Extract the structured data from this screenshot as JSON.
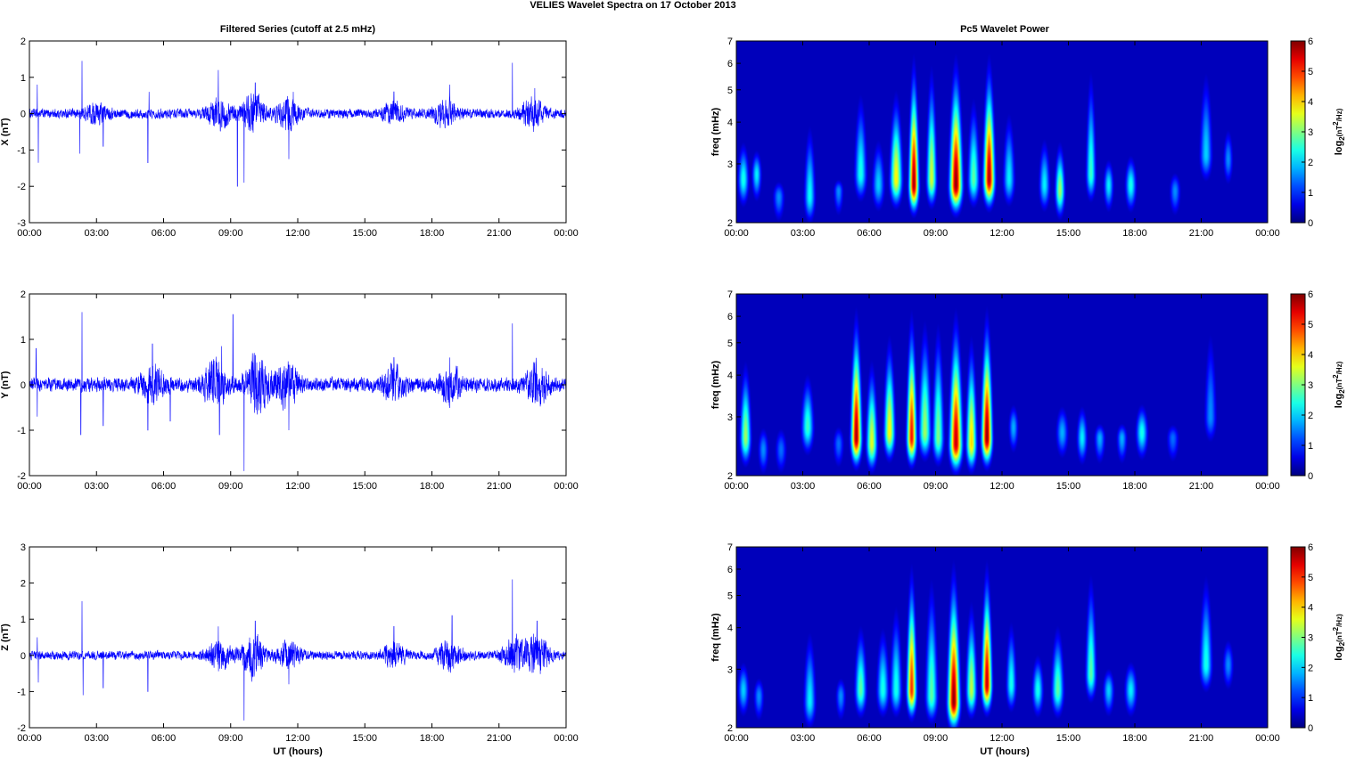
{
  "figure": {
    "title": "VELIES Wavelet Spectra on 17 October   2013",
    "left_column_title": "Filtered Series (cutoff at 2.5 mHz)",
    "right_column_title": "Pc5 Wavelet Power",
    "xlabel": "UT (hours)"
  },
  "chart_data": [
    {
      "type": "line",
      "name": "x-series",
      "ylabel": "X (nT)",
      "x_range_hours": [
        0,
        24
      ],
      "x_ticks": [
        "00:00",
        "03:00",
        "06:00",
        "09:00",
        "12:00",
        "15:00",
        "18:00",
        "21:00",
        "00:00"
      ],
      "ylim": [
        -3,
        2
      ],
      "y_ticks": [
        "-3",
        "-2",
        "-1",
        "0",
        "1",
        "2"
      ],
      "noise_amplitude": 0.12,
      "activity": [
        [
          3.0,
          0.2
        ],
        [
          8.5,
          0.35
        ],
        [
          10.0,
          0.45
        ],
        [
          11.6,
          0.35
        ],
        [
          16.3,
          0.25
        ],
        [
          18.6,
          0.3
        ],
        [
          22.5,
          0.35
        ]
      ],
      "spikes": [
        [
          0.35,
          0.8
        ],
        [
          0.4,
          -1.35
        ],
        [
          2.25,
          -1.1
        ],
        [
          2.35,
          1.45
        ],
        [
          3.3,
          -0.9
        ],
        [
          5.3,
          -1.35
        ],
        [
          5.35,
          0.6
        ],
        [
          8.45,
          1.2
        ],
        [
          9.3,
          -2.0
        ],
        [
          9.6,
          -1.9
        ],
        [
          10.1,
          0.85
        ],
        [
          11.6,
          -1.25
        ],
        [
          11.8,
          0.6
        ],
        [
          16.3,
          0.6
        ],
        [
          18.8,
          0.8
        ],
        [
          21.6,
          1.4
        ],
        [
          22.6,
          0.7
        ]
      ],
      "color": "#0000ff"
    },
    {
      "type": "line",
      "name": "y-series",
      "ylabel": "Y (nT)",
      "x_range_hours": [
        0,
        24
      ],
      "x_ticks": [
        "00:00",
        "03:00",
        "06:00",
        "09:00",
        "12:00",
        "15:00",
        "18:00",
        "21:00",
        "00:00"
      ],
      "ylim": [
        -2,
        2
      ],
      "y_ticks": [
        "-2",
        "-1",
        "0",
        "1",
        "2"
      ],
      "noise_amplitude": 0.14,
      "activity": [
        [
          5.5,
          0.35
        ],
        [
          8.3,
          0.45
        ],
        [
          10.2,
          0.55
        ],
        [
          11.5,
          0.4
        ],
        [
          16.3,
          0.3
        ],
        [
          18.8,
          0.3
        ],
        [
          22.7,
          0.35
        ]
      ],
      "spikes": [
        [
          0.3,
          0.8
        ],
        [
          0.35,
          -0.7
        ],
        [
          2.3,
          -1.1
        ],
        [
          2.35,
          1.6
        ],
        [
          3.3,
          -0.9
        ],
        [
          5.3,
          -1.0
        ],
        [
          5.5,
          0.9
        ],
        [
          6.3,
          -0.8
        ],
        [
          8.5,
          -1.1
        ],
        [
          8.6,
          0.85
        ],
        [
          9.1,
          1.55
        ],
        [
          9.6,
          -1.9
        ],
        [
          10.1,
          0.65
        ],
        [
          11.6,
          -1.0
        ],
        [
          16.3,
          0.6
        ],
        [
          18.8,
          0.6
        ],
        [
          21.6,
          1.35
        ],
        [
          22.6,
          0.5
        ]
      ],
      "color": "#0000ff"
    },
    {
      "type": "line",
      "name": "z-series",
      "ylabel": "Z (nT)",
      "x_range_hours": [
        0,
        24
      ],
      "x_ticks": [
        "00:00",
        "03:00",
        "06:00",
        "09:00",
        "12:00",
        "15:00",
        "18:00",
        "21:00",
        "00:00"
      ],
      "ylim": [
        -2,
        3
      ],
      "y_ticks": [
        "-2",
        "-1",
        "0",
        "1",
        "2",
        "3"
      ],
      "noise_amplitude": 0.11,
      "activity": [
        [
          8.5,
          0.3
        ],
        [
          10.0,
          0.5
        ],
        [
          11.6,
          0.3
        ],
        [
          16.3,
          0.25
        ],
        [
          18.8,
          0.35
        ],
        [
          21.7,
          0.4
        ],
        [
          22.7,
          0.45
        ]
      ],
      "spikes": [
        [
          0.35,
          0.5
        ],
        [
          0.4,
          -0.75
        ],
        [
          2.35,
          1.5
        ],
        [
          2.4,
          -1.1
        ],
        [
          3.3,
          -0.9
        ],
        [
          5.3,
          -1.0
        ],
        [
          8.45,
          0.8
        ],
        [
          9.6,
          -1.8
        ],
        [
          10.1,
          0.95
        ],
        [
          11.6,
          -0.8
        ],
        [
          16.3,
          0.8
        ],
        [
          18.9,
          1.1
        ],
        [
          21.6,
          2.1
        ],
        [
          22.7,
          0.95
        ]
      ],
      "color": "#0000ff"
    },
    {
      "type": "heatmap",
      "name": "x-wavelet",
      "ylabel": "freq (mHz)",
      "y_scale": "log",
      "ylim": [
        2,
        7
      ],
      "y_ticks": [
        "2",
        "3",
        "4",
        "5",
        "6",
        "7"
      ],
      "x_range_hours": [
        0,
        24
      ],
      "x_ticks": [
        "00:00",
        "03:00",
        "06:00",
        "09:00",
        "12:00",
        "15:00",
        "18:00",
        "21:00",
        "00:00"
      ],
      "colorbar": {
        "label": "log2(nT^2/Hz)",
        "range": [
          0,
          6
        ],
        "ticks": [
          "0",
          "1",
          "2",
          "3",
          "4",
          "5",
          "6"
        ]
      },
      "peaks": [
        [
          0.3,
          2.7,
          2.4,
          3.8
        ],
        [
          0.9,
          2.8,
          2.2,
          3.5
        ],
        [
          1.9,
          2.4,
          1.6,
          2.8
        ],
        [
          3.3,
          2.4,
          2.3,
          4.6
        ],
        [
          4.6,
          2.5,
          1.6,
          2.8
        ],
        [
          5.6,
          2.8,
          2.4,
          5.8
        ],
        [
          6.4,
          2.6,
          2.0,
          4.0
        ],
        [
          7.2,
          2.7,
          3.8,
          5.6
        ],
        [
          8.0,
          2.6,
          5.8,
          7.0
        ],
        [
          8.8,
          2.7,
          3.5,
          7.0
        ],
        [
          9.9,
          2.6,
          5.9,
          7.0
        ],
        [
          10.7,
          2.7,
          2.8,
          5.5
        ],
        [
          11.4,
          2.7,
          5.7,
          7.0
        ],
        [
          12.3,
          2.7,
          2.2,
          5.0
        ],
        [
          13.9,
          2.6,
          2.2,
          4.0
        ],
        [
          14.6,
          2.5,
          3.2,
          3.8
        ],
        [
          16.0,
          2.8,
          2.6,
          7.0
        ],
        [
          16.8,
          2.6,
          2.2,
          3.3
        ],
        [
          17.8,
          2.6,
          2.4,
          3.4
        ],
        [
          19.8,
          2.5,
          1.6,
          3.0
        ],
        [
          21.2,
          3.2,
          2.0,
          7.0
        ],
        [
          22.2,
          3.1,
          1.6,
          4.2
        ]
      ],
      "color_map": "jet"
    },
    {
      "type": "heatmap",
      "name": "y-wavelet",
      "ylabel": "freq (mHz)",
      "y_scale": "log",
      "ylim": [
        2,
        7
      ],
      "y_ticks": [
        "2",
        "3",
        "4",
        "5",
        "6",
        "7"
      ],
      "x_range_hours": [
        0,
        24
      ],
      "x_ticks": [
        "00:00",
        "03:00",
        "06:00",
        "09:00",
        "12:00",
        "15:00",
        "18:00",
        "21:00",
        "00:00"
      ],
      "colorbar": {
        "label": "log2(nT^2/Hz)",
        "range": [
          0,
          6
        ],
        "ticks": [
          "0",
          "1",
          "2",
          "3",
          "4",
          "5",
          "6"
        ]
      },
      "peaks": [
        [
          0.4,
          2.6,
          3.2,
          5.0
        ],
        [
          1.2,
          2.4,
          1.6,
          3.0
        ],
        [
          2.0,
          2.4,
          1.4,
          3.0
        ],
        [
          3.2,
          2.8,
          2.6,
          4.5
        ],
        [
          4.6,
          2.5,
          1.4,
          3.0
        ],
        [
          5.4,
          2.6,
          5.8,
          7.0
        ],
        [
          6.1,
          2.5,
          3.6,
          5.0
        ],
        [
          6.9,
          2.7,
          3.8,
          6.0
        ],
        [
          7.9,
          2.6,
          5.2,
          7.0
        ],
        [
          8.5,
          2.7,
          3.2,
          7.0
        ],
        [
          9.1,
          2.6,
          3.0,
          7.0
        ],
        [
          9.9,
          2.5,
          5.6,
          7.0
        ],
        [
          10.6,
          2.5,
          4.0,
          6.0
        ],
        [
          11.3,
          2.6,
          5.9,
          7.0
        ],
        [
          12.5,
          2.8,
          1.8,
          3.5
        ],
        [
          14.7,
          2.7,
          1.8,
          3.5
        ],
        [
          15.6,
          2.6,
          2.2,
          3.5
        ],
        [
          16.4,
          2.6,
          1.8,
          3.0
        ],
        [
          17.4,
          2.6,
          1.8,
          3.0
        ],
        [
          18.3,
          2.7,
          2.4,
          3.5
        ],
        [
          19.7,
          2.6,
          1.4,
          3.0
        ],
        [
          21.4,
          3.0,
          1.6,
          7.0
        ]
      ],
      "color_map": "jet"
    },
    {
      "type": "heatmap",
      "name": "z-wavelet",
      "ylabel": "freq (mHz)",
      "y_scale": "log",
      "ylim": [
        2,
        7
      ],
      "y_ticks": [
        "2",
        "3",
        "4",
        "5",
        "6",
        "7"
      ],
      "x_range_hours": [
        0,
        24
      ],
      "x_ticks": [
        "00:00",
        "03:00",
        "06:00",
        "09:00",
        "12:00",
        "15:00",
        "18:00",
        "21:00",
        "00:00"
      ],
      "colorbar": {
        "label": "log2(nT^2/Hz)",
        "range": [
          0,
          6
        ],
        "ticks": [
          "0",
          "1",
          "2",
          "3",
          "4",
          "5",
          "6"
        ]
      },
      "peaks": [
        [
          0.3,
          2.6,
          2.0,
          3.4
        ],
        [
          1.0,
          2.5,
          1.6,
          3.0
        ],
        [
          3.3,
          2.4,
          2.2,
          4.6
        ],
        [
          4.7,
          2.5,
          1.6,
          3.0
        ],
        [
          5.6,
          2.6,
          2.8,
          4.6
        ],
        [
          6.6,
          2.6,
          2.4,
          4.6
        ],
        [
          7.2,
          2.6,
          2.4,
          5.6
        ],
        [
          7.9,
          2.6,
          5.0,
          7.0
        ],
        [
          8.8,
          2.5,
          2.8,
          7.0
        ],
        [
          9.8,
          2.4,
          5.9,
          7.0
        ],
        [
          10.6,
          2.6,
          3.4,
          5.5
        ],
        [
          11.3,
          2.7,
          5.6,
          7.0
        ],
        [
          12.4,
          2.7,
          2.4,
          4.8
        ],
        [
          13.6,
          2.6,
          2.4,
          3.6
        ],
        [
          14.5,
          2.6,
          2.8,
          4.6
        ],
        [
          16.0,
          2.9,
          2.8,
          7.0
        ],
        [
          16.8,
          2.6,
          2.0,
          3.2
        ],
        [
          17.8,
          2.6,
          2.2,
          3.4
        ],
        [
          21.2,
          3.1,
          2.4,
          7.0
        ],
        [
          22.2,
          3.1,
          1.6,
          4.0
        ]
      ],
      "color_map": "jet"
    }
  ]
}
